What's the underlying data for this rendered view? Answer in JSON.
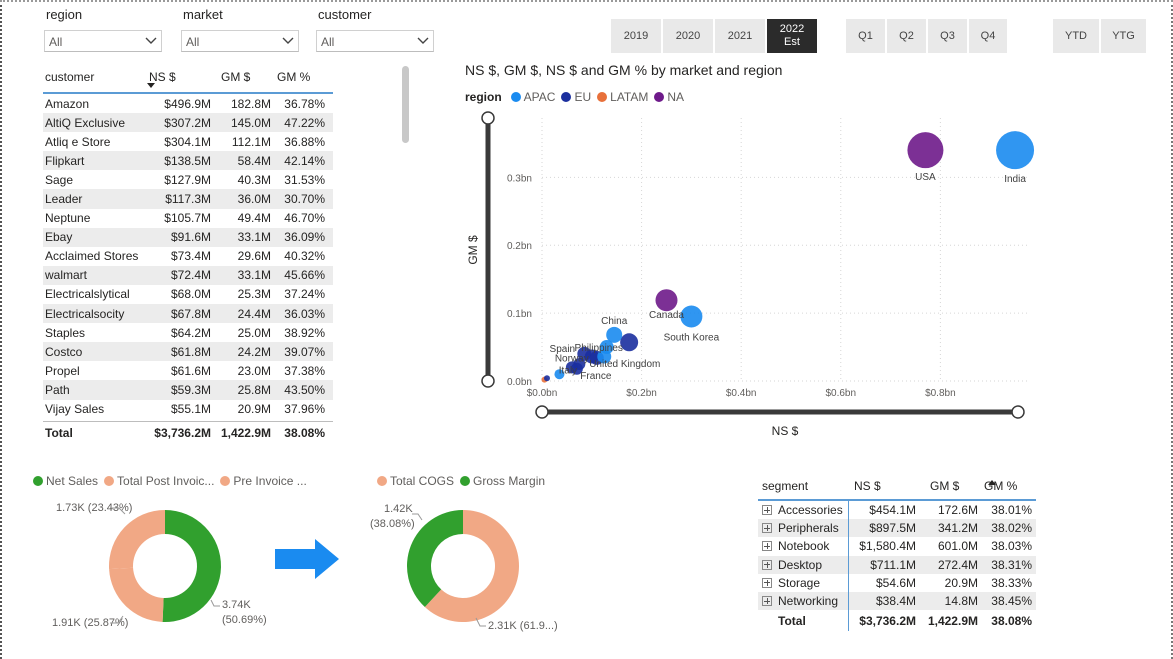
{
  "slicers": [
    {
      "title": "region",
      "value": "All"
    },
    {
      "title": "market",
      "value": "All"
    },
    {
      "title": "customer",
      "value": "All"
    }
  ],
  "customer_table": {
    "headers": [
      "customer",
      "NS $",
      "GM $",
      "GM %"
    ],
    "rows": [
      [
        "Amazon",
        "$496.9M",
        "182.8M",
        "36.78%"
      ],
      [
        "AltiQ Exclusive",
        "$307.2M",
        "145.0M",
        "47.22%"
      ],
      [
        "Atliq e Store",
        "$304.1M",
        "112.1M",
        "36.88%"
      ],
      [
        "Flipkart",
        "$138.5M",
        "58.4M",
        "42.14%"
      ],
      [
        "Sage",
        "$127.9M",
        "40.3M",
        "31.53%"
      ],
      [
        "Leader",
        "$117.3M",
        "36.0M",
        "30.70%"
      ],
      [
        "Neptune",
        "$105.7M",
        "49.4M",
        "46.70%"
      ],
      [
        "Ebay",
        "$91.6M",
        "33.1M",
        "36.09%"
      ],
      [
        "Acclaimed Stores",
        "$73.4M",
        "29.6M",
        "40.32%"
      ],
      [
        "walmart",
        "$72.4M",
        "33.1M",
        "45.66%"
      ],
      [
        "Electricalslytical",
        "$68.0M",
        "25.3M",
        "37.24%"
      ],
      [
        "Electricalsocity",
        "$67.8M",
        "24.4M",
        "36.03%"
      ],
      [
        "Staples",
        "$64.2M",
        "25.0M",
        "38.92%"
      ],
      [
        "Costco",
        "$61.8M",
        "24.2M",
        "39.07%"
      ],
      [
        "Propel",
        "$61.6M",
        "23.0M",
        "37.38%"
      ],
      [
        "Path",
        "$59.3M",
        "25.8M",
        "43.50%"
      ],
      [
        "Vijay Sales",
        "$55.1M",
        "20.9M",
        "37.96%"
      ]
    ],
    "total": [
      "Total",
      "$3,736.2M",
      "1,422.9M",
      "38.08%"
    ]
  },
  "year_buttons": [
    {
      "label": "2019",
      "active": false
    },
    {
      "label": "2020",
      "active": false
    },
    {
      "label": "2021",
      "active": false
    },
    {
      "label": "2022\nEst",
      "active": true
    }
  ],
  "quarter_buttons": [
    "Q1",
    "Q2",
    "Q3",
    "Q4"
  ],
  "period_buttons": [
    "YTD",
    "YTG"
  ],
  "scatter": {
    "title": "NS $, GM $, NS $ and GM % by market and region",
    "legend_title": "region",
    "legend": [
      {
        "name": "APAC",
        "color": "#1a8bf0"
      },
      {
        "name": "EU",
        "color": "#1b2f9e"
      },
      {
        "name": "LATAM",
        "color": "#e8703a"
      },
      {
        "name": "NA",
        "color": "#6e1a8a"
      }
    ],
    "x_label": "NS $",
    "y_label": "GM $",
    "x_ticks": [
      "$0.0bn",
      "$0.2bn",
      "$0.4bn",
      "$0.6bn",
      "$0.8bn"
    ],
    "y_ticks": [
      "0.0bn",
      "0.1bn",
      "0.2bn",
      "0.3bn"
    ],
    "points": [
      {
        "label": "India",
        "region": "APAC",
        "x": 0.95,
        "y": 0.34,
        "size": 19
      },
      {
        "label": "USA",
        "region": "NA",
        "x": 0.77,
        "y": 0.34,
        "size": 18
      },
      {
        "label": "Canada",
        "region": "NA",
        "x": 0.25,
        "y": 0.119,
        "size": 11
      },
      {
        "label": "South Korea",
        "region": "APAC",
        "x": 0.3,
        "y": 0.095,
        "size": 11
      },
      {
        "label": "China",
        "region": "APAC",
        "x": 0.145,
        "y": 0.068,
        "size": 8
      },
      {
        "label": "Philippines",
        "region": "APAC",
        "x": 0.13,
        "y": 0.05,
        "size": 7
      },
      {
        "label": "",
        "region": "EU",
        "x": 0.175,
        "y": 0.057,
        "size": 9
      },
      {
        "label": "Spain",
        "region": "EU",
        "x": 0.085,
        "y": 0.04,
        "size": 7
      },
      {
        "label": "Norway",
        "region": "EU",
        "x": 0.1,
        "y": 0.036,
        "size": 7
      },
      {
        "label": "United Kingdom",
        "region": "EU",
        "x": 0.11,
        "y": 0.034,
        "size": 7
      },
      {
        "label": "",
        "region": "APAC",
        "x": 0.125,
        "y": 0.036,
        "size": 7
      },
      {
        "label": "",
        "region": "EU",
        "x": 0.075,
        "y": 0.025,
        "size": 6
      },
      {
        "label": "Italy",
        "region": "EU",
        "x": 0.06,
        "y": 0.02,
        "size": 6
      },
      {
        "label": "France",
        "region": "EU",
        "x": 0.07,
        "y": 0.018,
        "size": 6
      },
      {
        "label": "",
        "region": "APAC",
        "x": 0.035,
        "y": 0.01,
        "size": 5
      },
      {
        "label": "",
        "region": "LATAM",
        "x": 0.005,
        "y": 0.002,
        "size": 3
      },
      {
        "label": "",
        "region": "EU",
        "x": 0.01,
        "y": 0.004,
        "size": 3
      }
    ]
  },
  "donut1": {
    "legend": [
      {
        "name": "Net Sales",
        "color": "#31a02e"
      },
      {
        "name": "Total Post Invoic...",
        "color": "#f1a885"
      },
      {
        "name": "Pre Invoice ...",
        "color": "#f1a885"
      }
    ],
    "slices": [
      {
        "name": "Net Sales",
        "value": 50.69,
        "color": "#31a02e"
      },
      {
        "name": "Total Post Invoice",
        "value": 23.43,
        "color": "#f1a885"
      },
      {
        "name": "Pre Invoice",
        "value": 25.87,
        "color": "#f1a885"
      }
    ],
    "labels": [
      "1.73K (23.43%)",
      "1.91K (25.87%)",
      "3.74K",
      "(50.69%)"
    ]
  },
  "donut2": {
    "legend": [
      {
        "name": "Total COGS",
        "color": "#f1a885"
      },
      {
        "name": "Gross Margin",
        "color": "#31a02e"
      }
    ],
    "slices": [
      {
        "name": "Total COGS",
        "value": 61.92,
        "color": "#f1a885"
      },
      {
        "name": "Gross Margin",
        "value": 38.08,
        "color": "#31a02e"
      }
    ],
    "labels": [
      "1.42K",
      "(38.08%)",
      "2.31K (61.9...)"
    ]
  },
  "arrow_color": "#1a8bf0",
  "segment_table": {
    "headers": [
      "segment",
      "NS $",
      "GM $",
      "GM %"
    ],
    "rows": [
      [
        "Accessories",
        "$454.1M",
        "172.6M",
        "38.01%"
      ],
      [
        "Peripherals",
        "$897.5M",
        "341.2M",
        "38.02%"
      ],
      [
        "Notebook",
        "$1,580.4M",
        "601.0M",
        "38.03%"
      ],
      [
        "Desktop",
        "$711.1M",
        "272.4M",
        "38.31%"
      ],
      [
        "Storage",
        "$54.6M",
        "20.9M",
        "38.33%"
      ],
      [
        "Networking",
        "$38.4M",
        "14.8M",
        "38.45%"
      ]
    ],
    "total": [
      "Total",
      "$3,736.2M",
      "1,422.9M",
      "38.08%"
    ]
  }
}
